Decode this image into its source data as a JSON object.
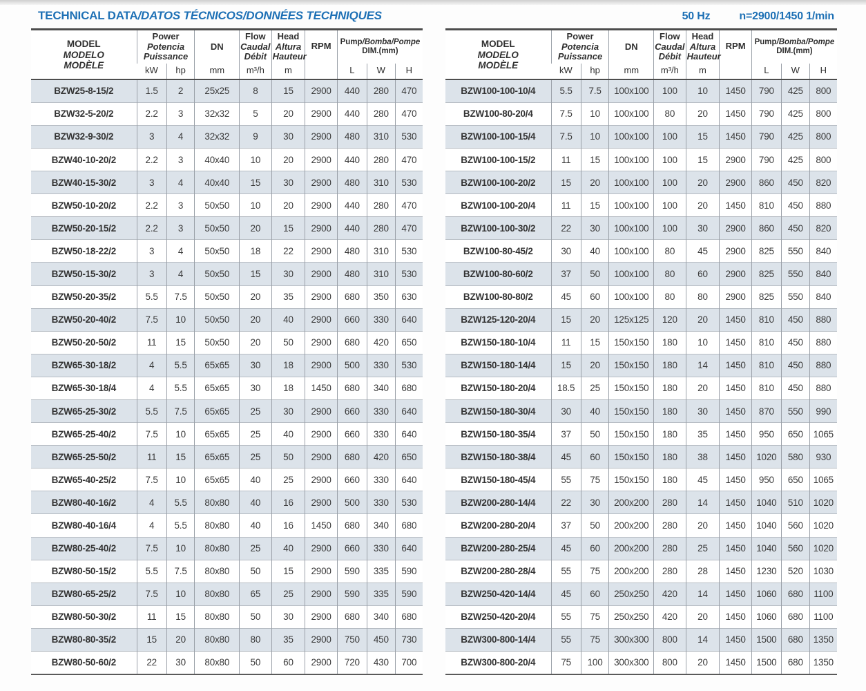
{
  "page": {
    "title_main": "TECHNICAL DATA",
    "title_rest": "/DATOS TÉCNICOS/DONNÉES TECHNIQUES",
    "frequency": "50 Hz",
    "speed": "n=2900/1450 1/min"
  },
  "colors": {
    "accent_blue": "#1d70b5",
    "row_stripe": "#dce3ea",
    "text": "#3a3a3a",
    "border_dark": "#4d4d4d",
    "border_light": "#9aa0a8"
  },
  "header": {
    "model": [
      "MODEL",
      "MODELO",
      "MODÈLE"
    ],
    "power": [
      "Power",
      "Potencia",
      "Puissance"
    ],
    "power_units": [
      "kW",
      "hp"
    ],
    "dn": "DN",
    "dn_unit": "mm",
    "flow": [
      "Flow",
      "Caudal",
      "Débit"
    ],
    "flow_unit": "m³/h",
    "head": [
      "Head",
      "Altura",
      "Hauteur"
    ],
    "head_unit": "m",
    "rpm": "RPM",
    "pump_main": "Pump",
    "pump_rest": "/Bomba/Pompe",
    "dim": "DIM.(mm)",
    "lwh": [
      "L",
      "W",
      "H"
    ]
  },
  "tables": [
    {
      "rows": [
        [
          "BZW25-8-15/2",
          "1.5",
          "2",
          "25x25",
          "8",
          "15",
          "2900",
          "440",
          "280",
          "470"
        ],
        [
          "BZW32-5-20/2",
          "2.2",
          "3",
          "32x32",
          "5",
          "20",
          "2900",
          "440",
          "280",
          "470"
        ],
        [
          "BZW32-9-30/2",
          "3",
          "4",
          "32x32",
          "9",
          "30",
          "2900",
          "480",
          "310",
          "530"
        ],
        [
          "BZW40-10-20/2",
          "2.2",
          "3",
          "40x40",
          "10",
          "20",
          "2900",
          "440",
          "280",
          "470"
        ],
        [
          "BZW40-15-30/2",
          "3",
          "4",
          "40x40",
          "15",
          "30",
          "2900",
          "480",
          "310",
          "530"
        ],
        [
          "BZW50-10-20/2",
          "2.2",
          "3",
          "50x50",
          "10",
          "20",
          "2900",
          "440",
          "280",
          "470"
        ],
        [
          "BZW50-20-15/2",
          "2.2",
          "3",
          "50x50",
          "20",
          "15",
          "2900",
          "440",
          "280",
          "470"
        ],
        [
          "BZW50-18-22/2",
          "3",
          "4",
          "50x50",
          "18",
          "22",
          "2900",
          "480",
          "310",
          "530"
        ],
        [
          "BZW50-15-30/2",
          "3",
          "4",
          "50x50",
          "15",
          "30",
          "2900",
          "480",
          "310",
          "530"
        ],
        [
          "BZW50-20-35/2",
          "5.5",
          "7.5",
          "50x50",
          "20",
          "35",
          "2900",
          "680",
          "350",
          "630"
        ],
        [
          "BZW50-20-40/2",
          "7.5",
          "10",
          "50x50",
          "20",
          "40",
          "2900",
          "660",
          "330",
          "640"
        ],
        [
          "BZW50-20-50/2",
          "11",
          "15",
          "50x50",
          "20",
          "50",
          "2900",
          "680",
          "420",
          "650"
        ],
        [
          "BZW65-30-18/2",
          "4",
          "5.5",
          "65x65",
          "30",
          "18",
          "2900",
          "500",
          "330",
          "530"
        ],
        [
          "BZW65-30-18/4",
          "4",
          "5.5",
          "65x65",
          "30",
          "18",
          "1450",
          "680",
          "340",
          "680"
        ],
        [
          "BZW65-25-30/2",
          "5.5",
          "7.5",
          "65x65",
          "25",
          "30",
          "2900",
          "660",
          "330",
          "640"
        ],
        [
          "BZW65-25-40/2",
          "7.5",
          "10",
          "65x65",
          "25",
          "40",
          "2900",
          "660",
          "330",
          "640"
        ],
        [
          "BZW65-25-50/2",
          "11",
          "15",
          "65x65",
          "25",
          "50",
          "2900",
          "680",
          "420",
          "650"
        ],
        [
          "BZW65-40-25/2",
          "7.5",
          "10",
          "65x65",
          "40",
          "25",
          "2900",
          "660",
          "330",
          "640"
        ],
        [
          "BZW80-40-16/2",
          "4",
          "5.5",
          "80x80",
          "40",
          "16",
          "2900",
          "500",
          "330",
          "530"
        ],
        [
          "BZW80-40-16/4",
          "4",
          "5.5",
          "80x80",
          "40",
          "16",
          "1450",
          "680",
          "340",
          "680"
        ],
        [
          "BZW80-25-40/2",
          "7.5",
          "10",
          "80x80",
          "25",
          "40",
          "2900",
          "660",
          "330",
          "640"
        ],
        [
          "BZW80-50-15/2",
          "5.5",
          "7.5",
          "80x80",
          "50",
          "15",
          "2900",
          "590",
          "335",
          "590"
        ],
        [
          "BZW80-65-25/2",
          "7.5",
          "10",
          "80x80",
          "65",
          "25",
          "2900",
          "590",
          "335",
          "590"
        ],
        [
          "BZW80-50-30/2",
          "11",
          "15",
          "80x80",
          "50",
          "30",
          "2900",
          "680",
          "340",
          "680"
        ],
        [
          "BZW80-80-35/2",
          "15",
          "20",
          "80x80",
          "80",
          "35",
          "2900",
          "750",
          "450",
          "730"
        ],
        [
          "BZW80-50-60/2",
          "22",
          "30",
          "80x80",
          "50",
          "60",
          "2900",
          "720",
          "430",
          "700"
        ]
      ]
    },
    {
      "rows": [
        [
          "BZW100-100-10/4",
          "5.5",
          "7.5",
          "100x100",
          "100",
          "10",
          "1450",
          "790",
          "425",
          "800"
        ],
        [
          "BZW100-80-20/4",
          "7.5",
          "10",
          "100x100",
          "80",
          "20",
          "1450",
          "790",
          "425",
          "800"
        ],
        [
          "BZW100-100-15/4",
          "7.5",
          "10",
          "100x100",
          "100",
          "15",
          "1450",
          "790",
          "425",
          "800"
        ],
        [
          "BZW100-100-15/2",
          "11",
          "15",
          "100x100",
          "100",
          "15",
          "2900",
          "790",
          "425",
          "800"
        ],
        [
          "BZW100-100-20/2",
          "15",
          "20",
          "100x100",
          "100",
          "20",
          "2900",
          "860",
          "450",
          "820"
        ],
        [
          "BZW100-100-20/4",
          "11",
          "15",
          "100x100",
          "100",
          "20",
          "1450",
          "810",
          "450",
          "880"
        ],
        [
          "BZW100-100-30/2",
          "22",
          "30",
          "100x100",
          "100",
          "30",
          "2900",
          "860",
          "450",
          "820"
        ],
        [
          "BZW100-80-45/2",
          "30",
          "40",
          "100x100",
          "80",
          "45",
          "2900",
          "825",
          "550",
          "840"
        ],
        [
          "BZW100-80-60/2",
          "37",
          "50",
          "100x100",
          "80",
          "60",
          "2900",
          "825",
          "550",
          "840"
        ],
        [
          "BZW100-80-80/2",
          "45",
          "60",
          "100x100",
          "80",
          "80",
          "2900",
          "825",
          "550",
          "840"
        ],
        [
          "BZW125-120-20/4",
          "15",
          "20",
          "125x125",
          "120",
          "20",
          "1450",
          "810",
          "450",
          "880"
        ],
        [
          "BZW150-180-10/4",
          "11",
          "15",
          "150x150",
          "180",
          "10",
          "1450",
          "810",
          "450",
          "880"
        ],
        [
          "BZW150-180-14/4",
          "15",
          "20",
          "150x150",
          "180",
          "14",
          "1450",
          "810",
          "450",
          "880"
        ],
        [
          "BZW150-180-20/4",
          "18.5",
          "25",
          "150x150",
          "180",
          "20",
          "1450",
          "810",
          "450",
          "880"
        ],
        [
          "BZW150-180-30/4",
          "30",
          "40",
          "150x150",
          "180",
          "30",
          "1450",
          "870",
          "550",
          "990"
        ],
        [
          "BZW150-180-35/4",
          "37",
          "50",
          "150x150",
          "180",
          "35",
          "1450",
          "950",
          "650",
          "1065"
        ],
        [
          "BZW150-180-38/4",
          "45",
          "60",
          "150x150",
          "180",
          "38",
          "1450",
          "1020",
          "580",
          "930"
        ],
        [
          "BZW150-180-45/4",
          "55",
          "75",
          "150x150",
          "180",
          "45",
          "1450",
          "950",
          "650",
          "1065"
        ],
        [
          "BZW200-280-14/4",
          "22",
          "30",
          "200x200",
          "280",
          "14",
          "1450",
          "1040",
          "510",
          "1020"
        ],
        [
          "BZW200-280-20/4",
          "37",
          "50",
          "200x200",
          "280",
          "20",
          "1450",
          "1040",
          "560",
          "1020"
        ],
        [
          "BZW200-280-25/4",
          "45",
          "60",
          "200x200",
          "280",
          "25",
          "1450",
          "1040",
          "560",
          "1020"
        ],
        [
          "BZW200-280-28/4",
          "55",
          "75",
          "200x200",
          "280",
          "28",
          "1450",
          "1230",
          "520",
          "1030"
        ],
        [
          "BZW250-420-14/4",
          "45",
          "60",
          "250x250",
          "420",
          "14",
          "1450",
          "1060",
          "680",
          "1100"
        ],
        [
          "BZW250-420-20/4",
          "55",
          "75",
          "250x250",
          "420",
          "20",
          "1450",
          "1060",
          "680",
          "1100"
        ],
        [
          "BZW300-800-14/4",
          "55",
          "75",
          "300x300",
          "800",
          "14",
          "1450",
          "1500",
          "680",
          "1350"
        ],
        [
          "BZW300-800-20/4",
          "75",
          "100",
          "300x300",
          "800",
          "20",
          "1450",
          "1500",
          "680",
          "1350"
        ]
      ]
    }
  ]
}
